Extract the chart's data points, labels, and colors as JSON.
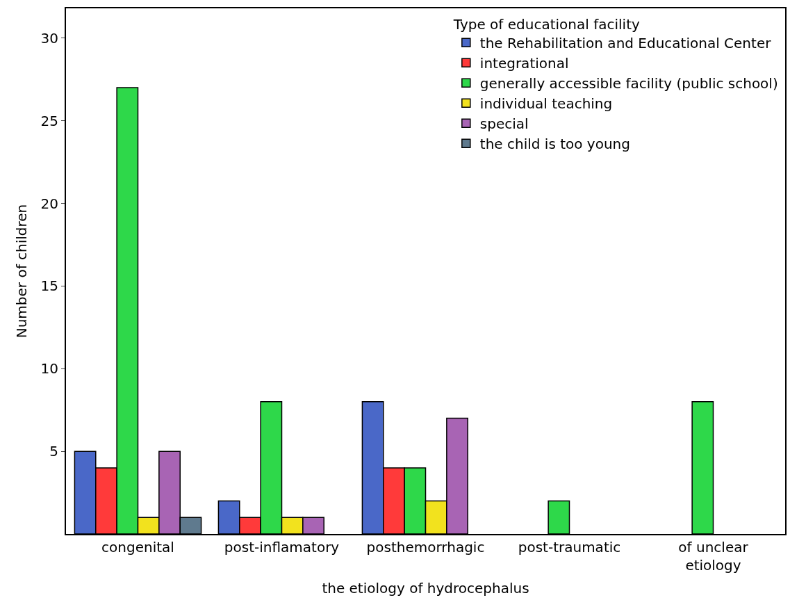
{
  "chart_data": {
    "type": "bar",
    "xlabel": "the etiology of hydrocephalus",
    "ylabel": "Number of children",
    "legend_title": "Type of educational facility",
    "categories": [
      "congenital",
      "post-inflamatory",
      "posthemorrhagic",
      "post-traumatic",
      "of unclear etiology"
    ],
    "series": [
      {
        "name": "the Rehabilitation and Educational Center",
        "color": "#4a68c8",
        "values": [
          5,
          2,
          8,
          null,
          null
        ]
      },
      {
        "name": "integrational",
        "color": "#ff3a3a",
        "values": [
          4,
          1,
          4,
          null,
          null
        ]
      },
      {
        "name": "generally accessible facility (public school)",
        "color": "#2ed84a",
        "values": [
          27,
          8,
          4,
          2,
          8
        ]
      },
      {
        "name": "individual teaching",
        "color": "#f2e21e",
        "values": [
          1,
          1,
          2,
          null,
          null
        ]
      },
      {
        "name": "special",
        "color": "#a864b4",
        "values": [
          5,
          1,
          7,
          null,
          null
        ]
      },
      {
        "name": "the child is too young",
        "color": "#5f7a8e",
        "values": [
          1,
          null,
          null,
          null,
          null
        ]
      }
    ],
    "ylim": [
      0,
      31.8
    ],
    "yticks": [
      5,
      10,
      15,
      20,
      25,
      30
    ],
    "legend": "top right"
  }
}
